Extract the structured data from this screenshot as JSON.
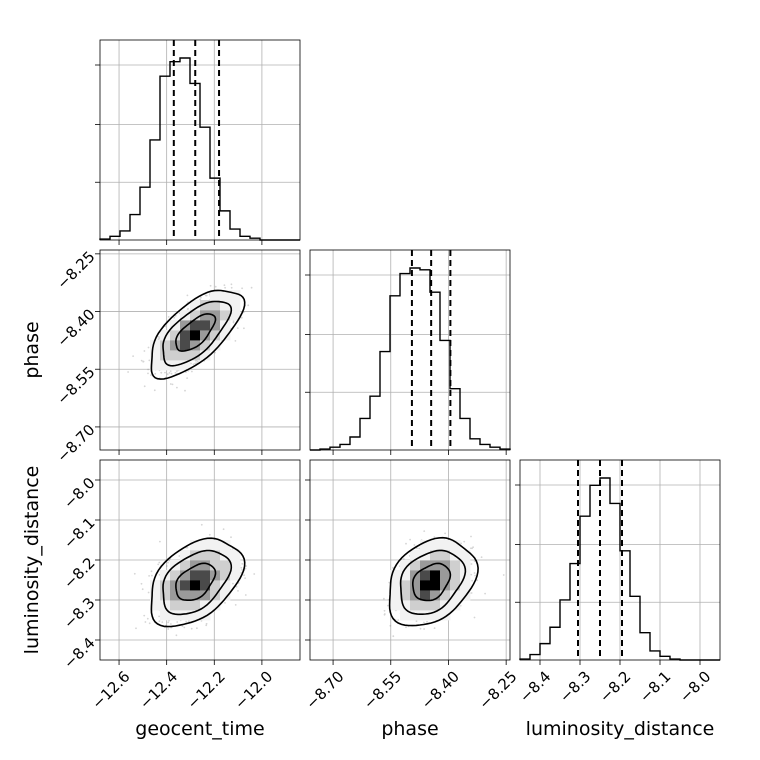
{
  "chart_data": {
    "type": "corner",
    "parameters": [
      "geocent_time",
      "phase",
      "luminosity_distance"
    ],
    "labels": {
      "x": [
        "geocent_time",
        "phase",
        "luminosity_distance"
      ],
      "y": [
        "phase",
        "luminosity_distance"
      ]
    },
    "ranges": {
      "geocent_time": [
        -12.68,
        -11.84
      ],
      "phase": [
        -8.76,
        -8.24
      ],
      "luminosity_distance": [
        -8.45,
        -7.95
      ]
    },
    "ticks": {
      "geocent_time": [
        -12.6,
        -12.4,
        -12.2,
        -12.0
      ],
      "phase": [
        -8.7,
        -8.55,
        -8.4,
        -8.25
      ],
      "luminosity_distance": [
        -8.4,
        -8.3,
        -8.2,
        -8.1,
        -8.0
      ]
    },
    "tick_labels": {
      "geocent_time": [
        "−12.6",
        "−12.4",
        "−12.2",
        "−12.0"
      ],
      "phase": [
        "−8.70",
        "−8.55",
        "−8.40",
        "−8.25"
      ],
      "luminosity_distance": [
        "−8.4",
        "−8.3",
        "−8.2",
        "−8.1",
        "−8.0"
      ]
    },
    "marginals": {
      "geocent_time": {
        "bin_edges": [
          -12.68,
          -12.638,
          -12.596,
          -12.554,
          -12.512,
          -12.47,
          -12.428,
          -12.386,
          -12.344,
          -12.302,
          -12.26,
          -12.218,
          -12.176,
          -12.134,
          -12.092,
          -12.05,
          -12.008,
          -11.966,
          -11.924,
          -11.882,
          -11.84
        ],
        "counts": [
          0.005,
          0.02,
          0.05,
          0.14,
          0.29,
          0.55,
          0.9,
          0.98,
          1.0,
          0.86,
          0.62,
          0.34,
          0.16,
          0.06,
          0.02,
          0.01,
          0,
          0,
          0,
          0
        ],
        "quantiles": [
          -12.37,
          -12.28,
          -12.18
        ]
      },
      "phase": {
        "bin_edges": [
          -8.76,
          -8.734,
          -8.708,
          -8.682,
          -8.656,
          -8.63,
          -8.604,
          -8.578,
          -8.552,
          -8.526,
          -8.5,
          -8.474,
          -8.448,
          -8.422,
          -8.396,
          -8.37,
          -8.344,
          -8.318,
          -8.292,
          -8.266,
          -8.24
        ],
        "counts": [
          0,
          0.005,
          0.015,
          0.03,
          0.07,
          0.17,
          0.29,
          0.53,
          0.83,
          0.95,
          0.98,
          0.97,
          0.85,
          0.59,
          0.33,
          0.17,
          0.06,
          0.03,
          0.015,
          0.005
        ],
        "quantiles": [
          -8.495,
          -8.445,
          -8.395
        ]
      },
      "luminosity_distance": {
        "bin_edges": [
          -8.45,
          -8.425,
          -8.4,
          -8.375,
          -8.35,
          -8.325,
          -8.3,
          -8.275,
          -8.25,
          -8.225,
          -8.2,
          -8.175,
          -8.15,
          -8.125,
          -8.1,
          -8.075,
          -8.05,
          -8.025,
          -8,
          -7.975,
          -7.95
        ],
        "counts": [
          0.005,
          0.03,
          0.09,
          0.18,
          0.33,
          0.53,
          0.79,
          0.96,
          1.0,
          0.86,
          0.6,
          0.35,
          0.15,
          0.05,
          0.02,
          0.005,
          0,
          0,
          0,
          0
        ],
        "quantiles": [
          -8.305,
          -8.25,
          -8.195
        ]
      }
    },
    "correlations": {
      "phase|geocent_time": {
        "mean": [
          -12.28,
          -8.455
        ],
        "sd": [
          0.075,
          0.044
        ],
        "rho": 0.65
      },
      "luminosity_distance|geocent_time": {
        "mean": [
          -12.28,
          -8.255
        ],
        "sd": [
          0.075,
          0.042
        ],
        "rho": 0.42
      },
      "luminosity_distance|phase": {
        "mean": [
          -8.445,
          -8.255
        ],
        "sd": [
          0.044,
          0.042
        ],
        "rho": 0.3
      }
    },
    "contour_levels_sigma": [
      1.1,
      1.9,
      2.6
    ],
    "grid": true
  }
}
